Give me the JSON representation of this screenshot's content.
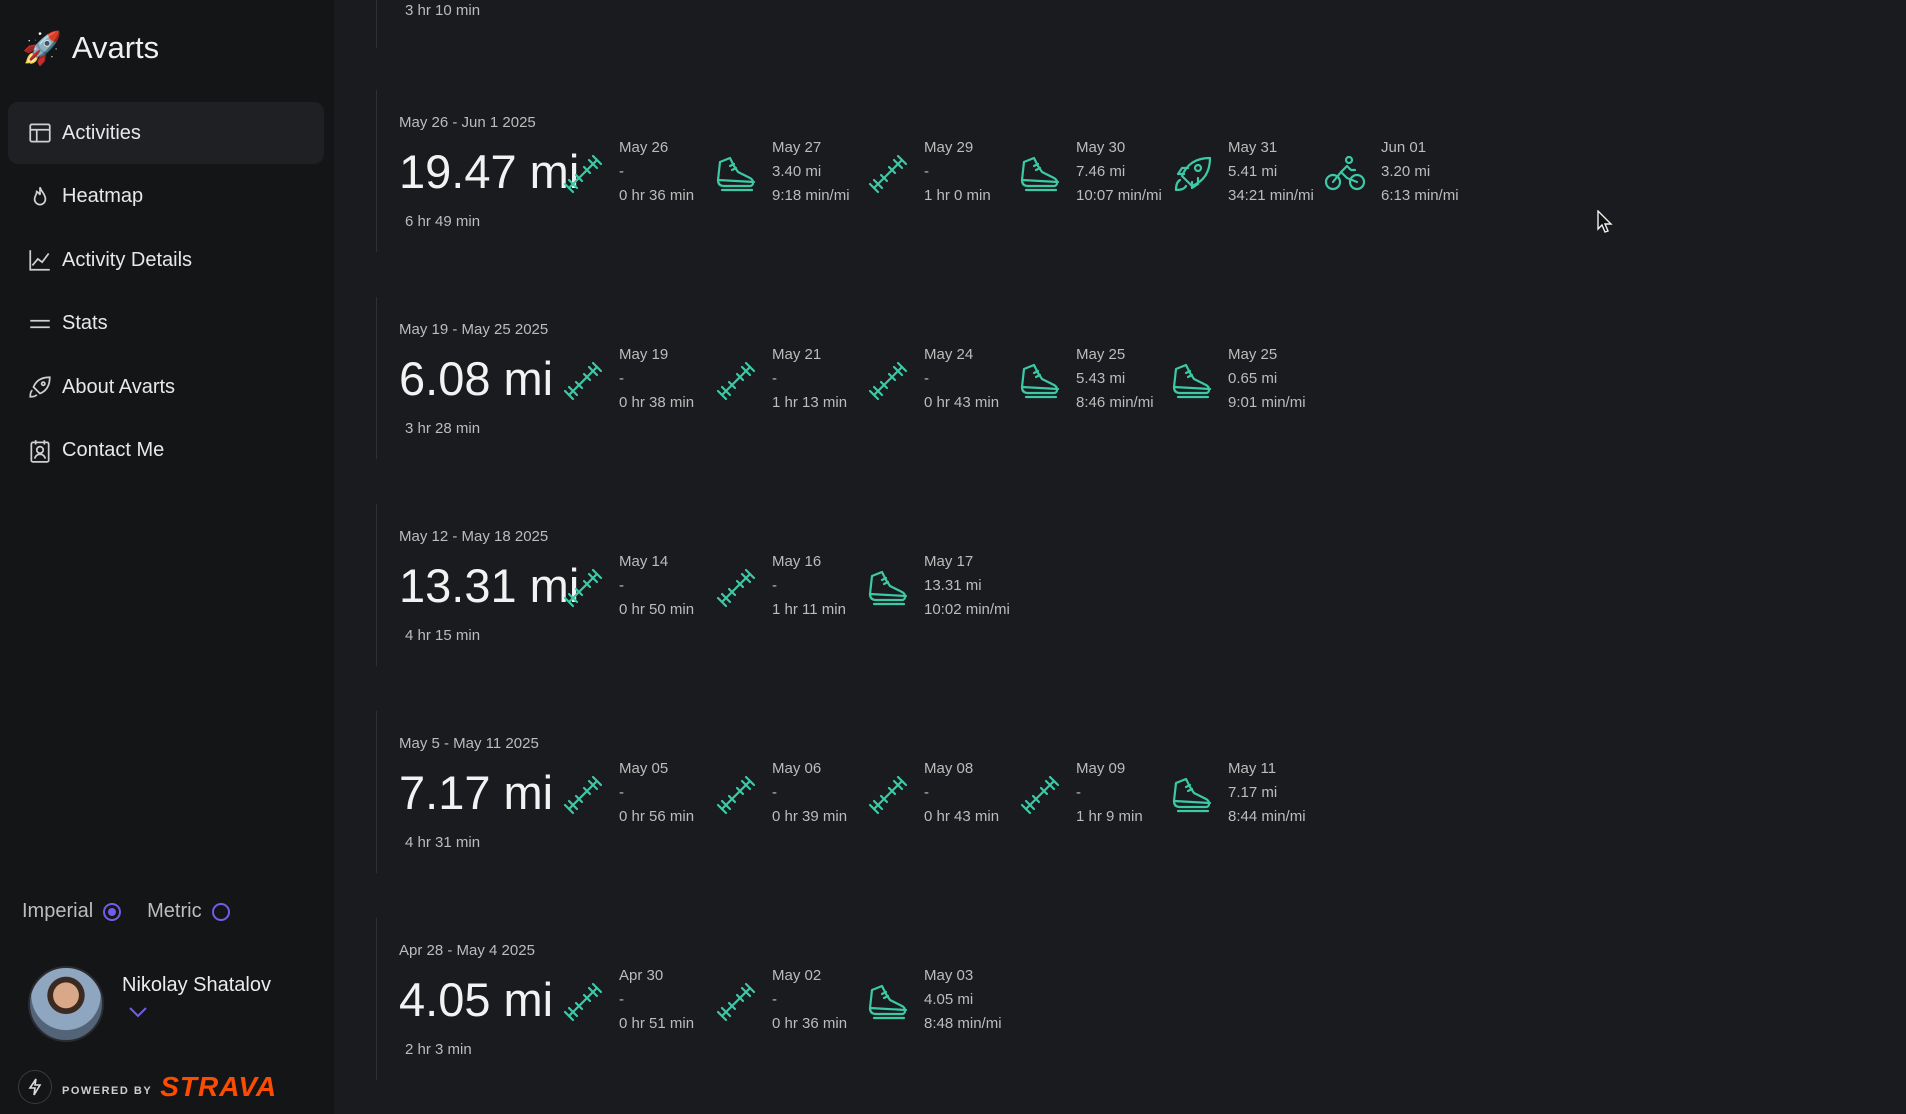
{
  "app": {
    "name": "Avarts"
  },
  "nav": [
    {
      "label": "Activities",
      "icon": "table-icon",
      "active": true
    },
    {
      "label": "Heatmap",
      "icon": "flame-icon"
    },
    {
      "label": "Activity Details",
      "icon": "line-chart-icon"
    },
    {
      "label": "Stats",
      "icon": "equals-icon"
    },
    {
      "label": "About Avarts",
      "icon": "rocket-icon"
    },
    {
      "label": "Contact Me",
      "icon": "contact-card-icon"
    }
  ],
  "units": {
    "imperial_label": "Imperial",
    "metric_label": "Metric",
    "selected": "Imperial"
  },
  "user": {
    "name": "Nikolay Shatalov"
  },
  "footer": {
    "powered_by": "POWERED BY",
    "brand": "STRAVA"
  },
  "colors": {
    "accent": "#3cc9a6",
    "radio": "#6f5ee8",
    "strava": "#fc4c02",
    "background": "#1a1b1e",
    "sidebar": "#141517"
  },
  "top_partial": {
    "time": "3 hr 10 min"
  },
  "weeks": [
    {
      "range": "May 26 - Jun 1 2025",
      "distance": "19.47 mi",
      "time": "6 hr 49 min",
      "activities": [
        {
          "type": "weights",
          "date": "May 26",
          "dist": "-",
          "stat": "0 hr 36 min"
        },
        {
          "type": "run",
          "date": "May 27",
          "dist": "3.40 mi",
          "stat": "9:18 min/mi"
        },
        {
          "type": "weights",
          "date": "May 29",
          "dist": "-",
          "stat": "1 hr 0 min"
        },
        {
          "type": "run",
          "date": "May 30",
          "dist": "7.46 mi",
          "stat": "10:07 min/mi"
        },
        {
          "type": "rocket",
          "date": "May 31",
          "dist": "5.41 mi",
          "stat": "34:21 min/mi"
        },
        {
          "type": "bike",
          "date": "Jun 01",
          "dist": "3.20 mi",
          "stat": "6:13 min/mi"
        }
      ]
    },
    {
      "range": "May 19 - May 25 2025",
      "distance": "6.08 mi",
      "time": "3 hr 28 min",
      "activities": [
        {
          "type": "weights",
          "date": "May 19",
          "dist": "-",
          "stat": "0 hr 38 min"
        },
        {
          "type": "weights",
          "date": "May 21",
          "dist": "-",
          "stat": "1 hr 13 min"
        },
        {
          "type": "weights",
          "date": "May 24",
          "dist": "-",
          "stat": "0 hr 43 min"
        },
        {
          "type": "run",
          "date": "May 25",
          "dist": "5.43 mi",
          "stat": "8:46 min/mi"
        },
        {
          "type": "run",
          "date": "May 25",
          "dist": "0.65 mi",
          "stat": "9:01 min/mi"
        }
      ]
    },
    {
      "range": "May 12 - May 18 2025",
      "distance": "13.31 mi",
      "time": "4 hr 15 min",
      "activities": [
        {
          "type": "weights",
          "date": "May 14",
          "dist": "-",
          "stat": "0 hr 50 min"
        },
        {
          "type": "weights",
          "date": "May 16",
          "dist": "-",
          "stat": "1 hr 11 min"
        },
        {
          "type": "run",
          "date": "May 17",
          "dist": "13.31 mi",
          "stat": "10:02 min/mi"
        }
      ]
    },
    {
      "range": "May 5 - May 11 2025",
      "distance": "7.17 mi",
      "time": "4 hr 31 min",
      "activities": [
        {
          "type": "weights",
          "date": "May 05",
          "dist": "-",
          "stat": "0 hr 56 min"
        },
        {
          "type": "weights",
          "date": "May 06",
          "dist": "-",
          "stat": "0 hr 39 min"
        },
        {
          "type": "weights",
          "date": "May 08",
          "dist": "-",
          "stat": "0 hr 43 min"
        },
        {
          "type": "weights",
          "date": "May 09",
          "dist": "-",
          "stat": "1 hr 9 min"
        },
        {
          "type": "run",
          "date": "May 11",
          "dist": "7.17 mi",
          "stat": "8:44 min/mi"
        }
      ]
    },
    {
      "range": "Apr 28 - May 4 2025",
      "distance": "4.05 mi",
      "time": "2 hr 3 min",
      "activities": [
        {
          "type": "weights",
          "date": "Apr 30",
          "dist": "-",
          "stat": "0 hr 51 min"
        },
        {
          "type": "weights",
          "date": "May 02",
          "dist": "-",
          "stat": "0 hr 36 min"
        },
        {
          "type": "run",
          "date": "May 03",
          "dist": "4.05 mi",
          "stat": "8:48 min/mi"
        }
      ]
    }
  ]
}
